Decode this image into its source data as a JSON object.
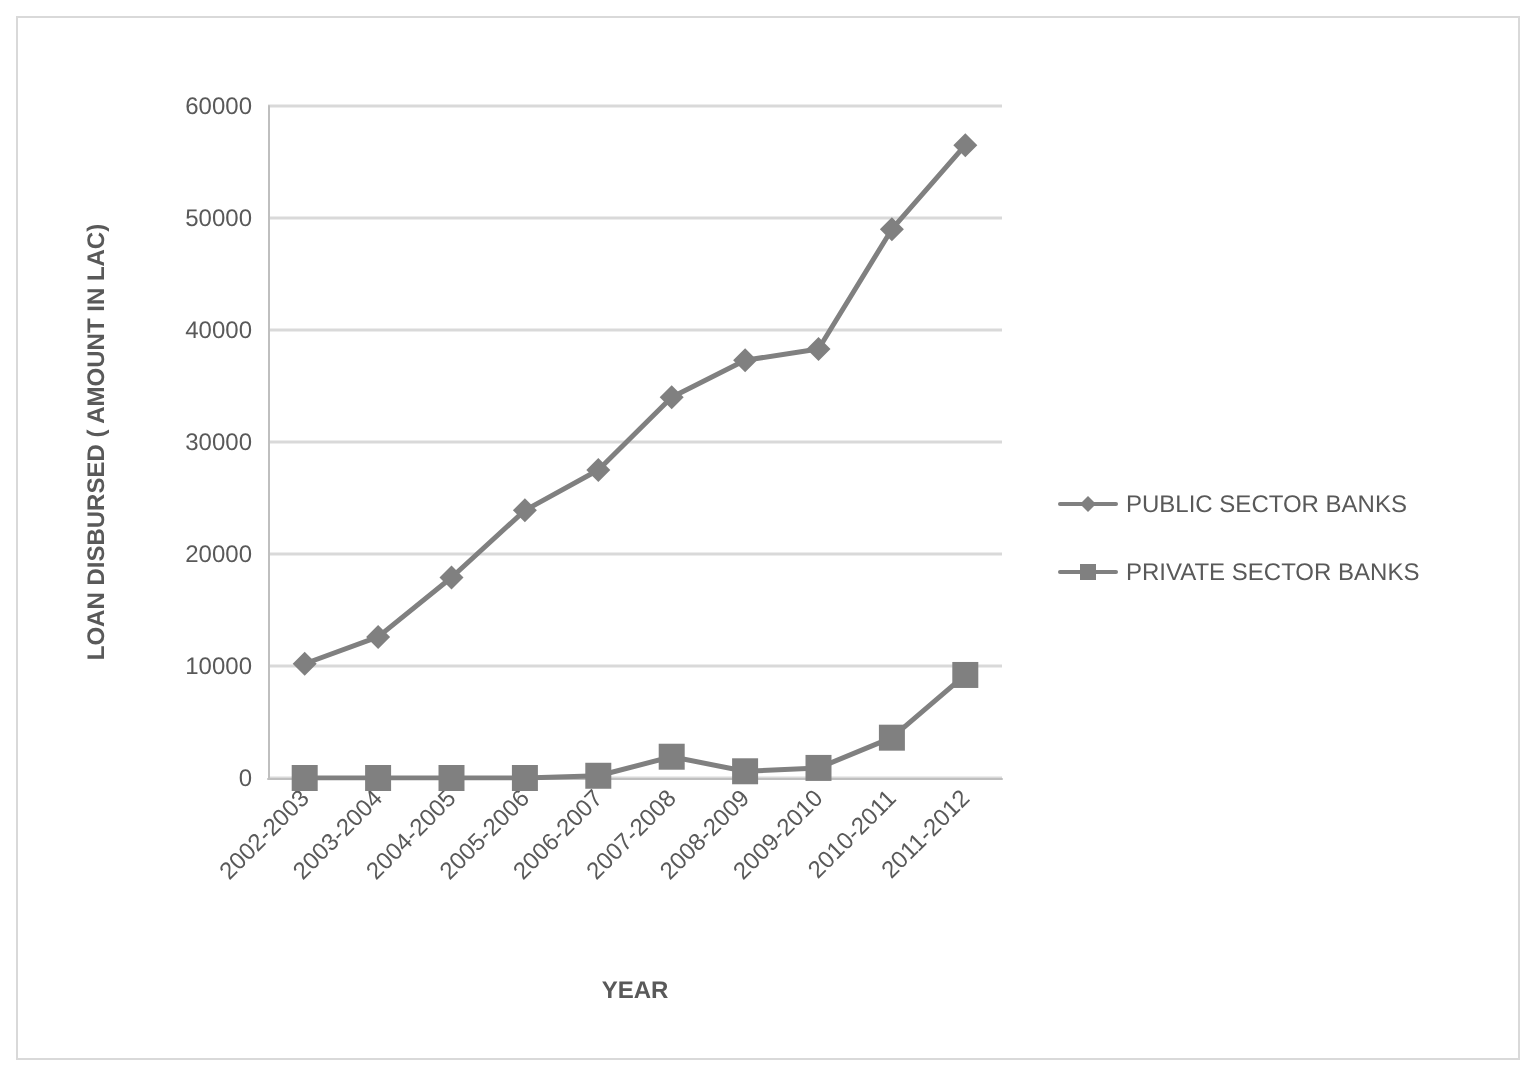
{
  "chart_data": {
    "type": "line",
    "xlabel": "YEAR",
    "ylabel": "LOAN DISBURSED ( AMOUNT IN LAC)",
    "categories": [
      "2002-2003",
      "2003-2004",
      "2004-2005",
      "2005-2006",
      "2006-2007",
      "2007-2008",
      "2008-2009",
      "2009-2010",
      "2010-2011",
      "2011-2012"
    ],
    "series": [
      {
        "name": "PUBLIC SECTOR BANKS",
        "color": "#808080",
        "marker": "diamond",
        "values": [
          10200,
          12600,
          17900,
          23900,
          27500,
          34000,
          37300,
          38300,
          49000,
          56500
        ]
      },
      {
        "name": "PRIVATE SECTOR BANKS",
        "color": "#808080",
        "marker": "square",
        "values": [
          0,
          0,
          0,
          0,
          200,
          1900,
          600,
          900,
          3600,
          9200
        ]
      }
    ],
    "ylim": [
      0,
      60000
    ],
    "yticks": [
      0,
      10000,
      20000,
      30000,
      40000,
      50000,
      60000
    ],
    "grid": "y",
    "legend": "right"
  }
}
